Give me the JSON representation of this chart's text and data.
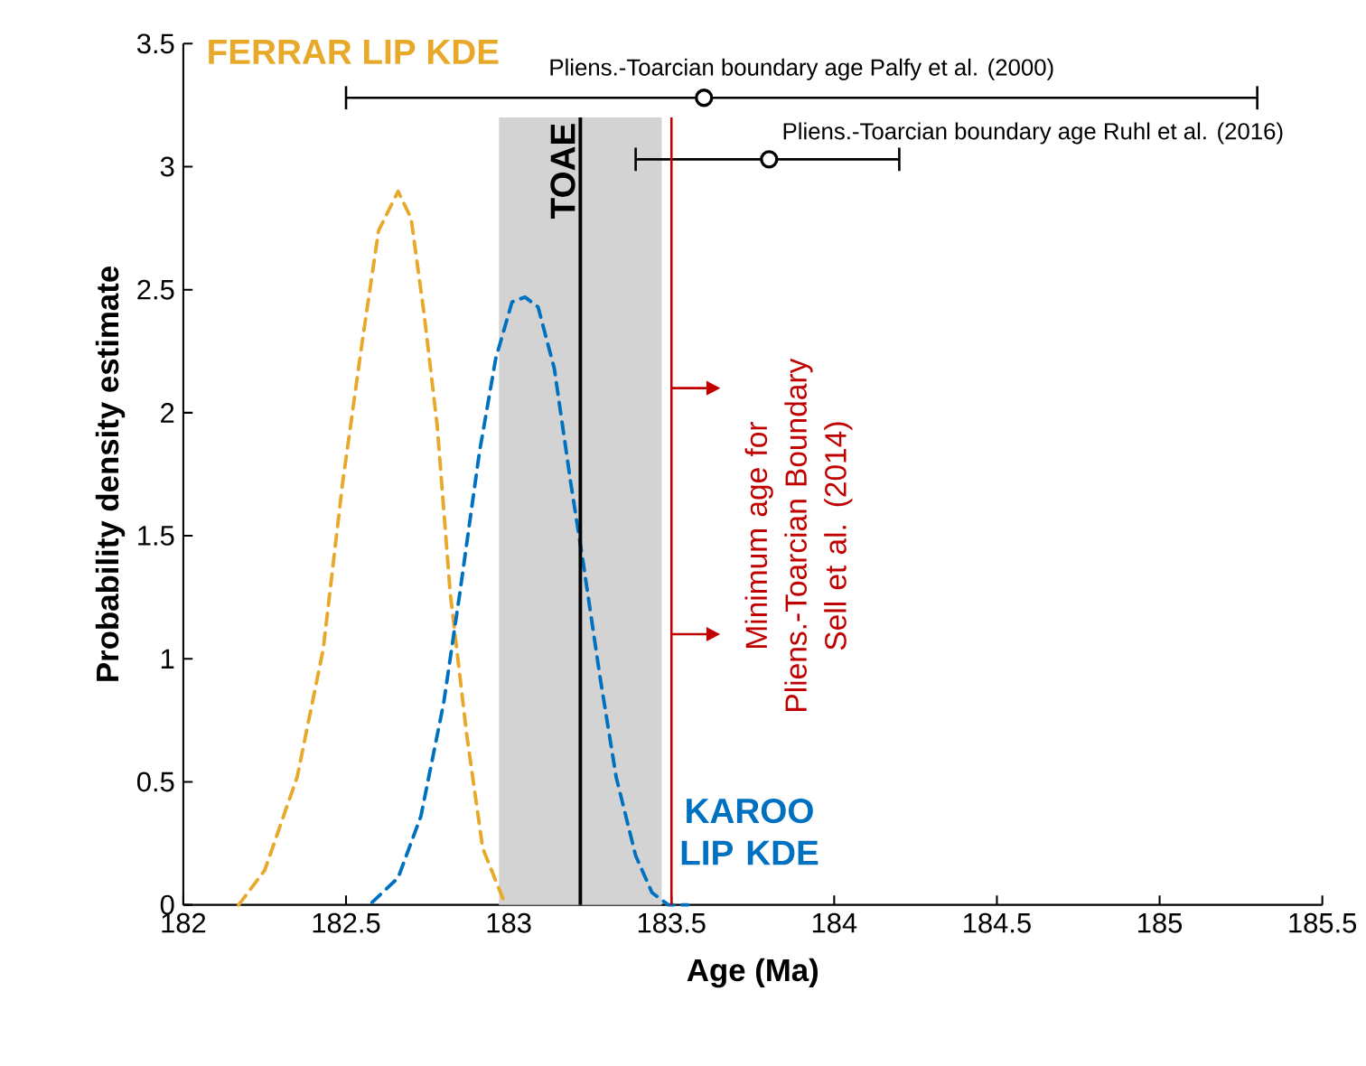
{
  "chart_data": {
    "type": "line",
    "xlabel": "Age (Ma)",
    "ylabel": "Probability density estimate",
    "xlim": [
      182,
      185.5
    ],
    "ylim": [
      0,
      3.5
    ],
    "xticks": [
      182,
      182.5,
      183,
      183.5,
      184,
      184.5,
      185,
      185.5
    ],
    "yticks": [
      0,
      0.5,
      1,
      1.5,
      2,
      2.5,
      3,
      3.5
    ],
    "series": [
      {
        "name": "FERRAR LIP KDE",
        "color": "#e8a92a",
        "line_style": "dashed",
        "marker": "none",
        "x": [
          182.17,
          182.25,
          182.35,
          182.43,
          182.49,
          182.55,
          182.6,
          182.66,
          182.7,
          182.74,
          182.78,
          182.82,
          182.87,
          182.92,
          182.99
        ],
        "values": [
          0,
          0.14,
          0.52,
          1.04,
          1.72,
          2.29,
          2.74,
          2.9,
          2.79,
          2.4,
          1.95,
          1.27,
          0.7,
          0.23,
          0
        ]
      },
      {
        "name": "KAROO LIP KDE",
        "color": "#0070c0",
        "line_style": "dashed",
        "marker": "none",
        "x": [
          182.58,
          182.66,
          182.73,
          182.8,
          182.85,
          182.91,
          182.96,
          183.01,
          183.05,
          183.09,
          183.14,
          183.19,
          183.23,
          183.28,
          183.33,
          183.39,
          183.44,
          183.49,
          183.55
        ],
        "values": [
          0.01,
          0.11,
          0.36,
          0.82,
          1.27,
          1.84,
          2.22,
          2.45,
          2.47,
          2.43,
          2.18,
          1.72,
          1.38,
          0.93,
          0.52,
          0.2,
          0.05,
          0,
          0
        ]
      },
      {
        "name": "Pliens.-Toarcian boundary age Palfy et al. (2000)",
        "type": "scatter",
        "color": "#000000",
        "marker": "circle",
        "x": [
          183.6
        ],
        "values": [
          3.28
        ],
        "xerrors": [
          [
            182.5,
            185.3
          ]
        ]
      },
      {
        "name": "Pliens.-Toarcian boundary age Ruhl et al. (2016)",
        "type": "scatter",
        "color": "#000000",
        "marker": "circle",
        "x": [
          183.8
        ],
        "values": [
          3.03
        ],
        "xerrors": [
          [
            183.39,
            184.2
          ]
        ]
      }
    ],
    "bands": [
      {
        "axis": "x",
        "from": 182.97,
        "to": 183.47,
        "color": "#d3d3d3"
      }
    ],
    "ref_lines": [
      {
        "axis": "x",
        "value": 183.22,
        "label": "TOAE",
        "color": "#000000"
      },
      {
        "axis": "x",
        "value": 183.5,
        "label": "Minimum age for Pliens.-Toarcian Boundary Sell et al. (2014)",
        "color": "#c00000"
      }
    ]
  }
}
